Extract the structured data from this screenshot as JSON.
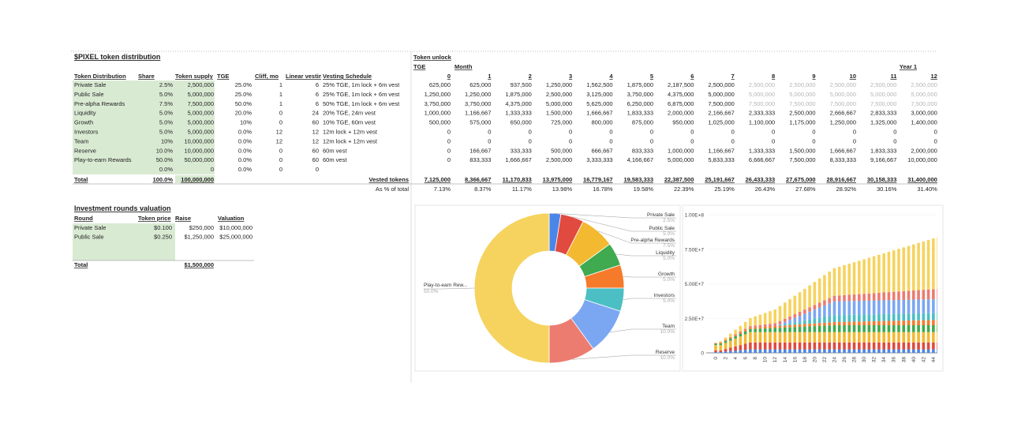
{
  "distribution": {
    "title": "$PIXEL token distribution",
    "headers": [
      "Token Distribution",
      "Share",
      "Token supply",
      "TGE",
      "Cliff, mo",
      "Linear vesting",
      "Vesting Schedule"
    ],
    "rows": [
      [
        "Private Sale",
        "2.5%",
        "2,500,000",
        "25.0%",
        "1",
        "6",
        "25% TGE, 1m lock + 6m vest"
      ],
      [
        "Public Sale",
        "5.0%",
        "5,000,000",
        "25.0%",
        "1",
        "6",
        "25% TGE, 1m lock + 6m vest"
      ],
      [
        "Pre-alpha Rewards",
        "7.5%",
        "7,500,000",
        "50.0%",
        "1",
        "6",
        "50% TGE, 1m lock + 6m vest"
      ],
      [
        "Liquidity",
        "5.0%",
        "5,000,000",
        "20.0%",
        "0",
        "24",
        "20% TGE, 24m vest"
      ],
      [
        "Growth",
        "5.0%",
        "5,000,000",
        "10%",
        "0",
        "60",
        "10% TGE, 60m vest"
      ],
      [
        "Investors",
        "5.0%",
        "5,000,000",
        "0.0%",
        "12",
        "12",
        "12m lock + 12m vest"
      ],
      [
        "Team",
        "10%",
        "10,000,000",
        "0.0%",
        "12",
        "12",
        "12m lock + 12m vest"
      ],
      [
        "Reserve",
        "10.0%",
        "10,000,000",
        "0.0%",
        "0",
        "60",
        "60m vest"
      ],
      [
        "Play-to-earn Rewards",
        "50.0%",
        "50,000,000",
        "0.0%",
        "0",
        "60",
        "60m vest"
      ],
      [
        null,
        "0.0%",
        "0",
        "0.0%",
        "0",
        "0",
        null
      ]
    ],
    "total": [
      "Total",
      "100.0%",
      "100,000,000"
    ]
  },
  "unlock": {
    "title": "Token unlock",
    "tge": "TGE",
    "month": "Month",
    "year": "Year 1",
    "months": [
      "0",
      "1",
      "2",
      "3",
      "4",
      "5",
      "6",
      "7",
      "8",
      "9",
      "10",
      "11",
      "12"
    ],
    "rows": [
      [
        "625,000",
        "625,000",
        "937,500",
        "1,250,000",
        "1,562,500",
        "1,875,000",
        "2,187,500",
        "2,500,000",
        "2,500,000",
        "2,500,000",
        "2,500,000",
        "2,500,000",
        "2,500,000"
      ],
      [
        "1,250,000",
        "1,250,000",
        "1,875,000",
        "2,500,000",
        "3,125,000",
        "3,750,000",
        "4,375,000",
        "5,000,000",
        "5,000,000",
        "5,000,000",
        "5,000,000",
        "5,000,000",
        "5,000,000"
      ],
      [
        "3,750,000",
        "3,750,000",
        "4,375,000",
        "5,000,000",
        "5,625,000",
        "6,250,000",
        "6,875,000",
        "7,500,000",
        "7,500,000",
        "7,500,000",
        "7,500,000",
        "7,500,000",
        "7,500,000"
      ],
      [
        "1,000,000",
        "1,166,667",
        "1,333,333",
        "1,500,000",
        "1,666,667",
        "1,833,333",
        "2,000,000",
        "2,166,667",
        "2,333,333",
        "2,500,000",
        "2,666,667",
        "2,833,333",
        "3,000,000"
      ],
      [
        "500,000",
        "575,000",
        "650,000",
        "725,000",
        "800,000",
        "875,000",
        "950,000",
        "1,025,000",
        "1,100,000",
        "1,175,000",
        "1,250,000",
        "1,325,000",
        "1,400,000"
      ],
      [
        "0",
        "0",
        "0",
        "0",
        "0",
        "0",
        "0",
        "0",
        "0",
        "0",
        "0",
        "0",
        "0"
      ],
      [
        "0",
        "0",
        "0",
        "0",
        "0",
        "0",
        "0",
        "0",
        "0",
        "0",
        "0",
        "0",
        "0"
      ],
      [
        "0",
        "166,667",
        "333,333",
        "500,000",
        "666,667",
        "833,333",
        "1,000,000",
        "1,166,667",
        "1,333,333",
        "1,500,000",
        "1,666,667",
        "1,833,333",
        "2,000,000"
      ],
      [
        "0",
        "833,333",
        "1,666,667",
        "2,500,000",
        "3,333,333",
        "4,166,667",
        "5,000,000",
        "5,833,333",
        "6,666,667",
        "7,500,000",
        "8,333,333",
        "9,166,667",
        "10,000,000"
      ]
    ],
    "vested_label": "Vested tokens",
    "vested": [
      "7,125,000",
      "8,366,667",
      "11,170,833",
      "13,975,000",
      "16,779,167",
      "19,583,333",
      "22,387,500",
      "25,191,667",
      "26,433,333",
      "27,675,000",
      "28,916,667",
      "30,158,333",
      "31,400,000"
    ],
    "pct_label": "As % of total",
    "pct": [
      "7.13%",
      "8.37%",
      "11.17%",
      "13.98%",
      "16.78%",
      "19.58%",
      "22.39%",
      "25.19%",
      "26.43%",
      "27.68%",
      "28.92%",
      "30.16%",
      "31.40%"
    ]
  },
  "investment": {
    "title": "Investment rounds valuation",
    "headers": [
      "Round",
      "Token price",
      "Raise",
      "Valuation"
    ],
    "rows": [
      [
        "Private Sale",
        "$0.100",
        "$250,000",
        "$10,000,000"
      ],
      [
        "Public Sale",
        "$0.250",
        "$1,250,000",
        "$25,000,000"
      ]
    ],
    "total": [
      "Total",
      "$1,500,000"
    ]
  },
  "pie_chart": {
    "type": "pie",
    "categories": [
      "Private Sale",
      "Public Sale",
      "Pre-alpha Rewards",
      "Liquidity",
      "Growth",
      "Investors",
      "Team",
      "Reserve",
      "Play-to-earn Rew..."
    ],
    "values": [
      2.5,
      5,
      7.5,
      5,
      5,
      5,
      10,
      10,
      50
    ],
    "value_labels": [
      "2.5%",
      "5.0%",
      "7.5%",
      "5.0%",
      "5.0%",
      "5.0%",
      "10.0%",
      "10.0%",
      "50.0%"
    ],
    "colors": [
      "#4a86e8",
      "#e04a3f",
      "#f3b931",
      "#3faa4f",
      "#f57a2a",
      "#4bbfc4",
      "#7ba7f2",
      "#ec7b70",
      "#f6d35e"
    ]
  },
  "bar_chart": {
    "type": "stacked_bar",
    "categories": [
      0,
      null,
      2,
      null,
      4,
      null,
      6,
      null,
      8,
      null,
      10,
      null,
      12,
      null,
      14,
      null,
      16,
      null,
      18,
      null,
      20,
      null,
      22,
      null,
      24,
      null,
      26,
      null,
      28,
      null,
      30,
      null,
      32,
      null,
      34,
      null,
      36,
      null,
      38,
      null,
      40,
      null,
      42,
      null,
      44,
      null
    ],
    "ylim": [
      0,
      100000000
    ],
    "yticks": [
      0,
      {
        "value": 25000000,
        "label": "2.50E+7"
      },
      {
        "value": 50000000,
        "label": "5.00E+7"
      },
      {
        "value": 75000000,
        "label": "7.50E+7"
      },
      {
        "value": 100000000,
        "label": "1.00E+8"
      }
    ],
    "series": [
      {
        "color": "#4a86e8",
        "values": [
          625000,
          625000,
          937500,
          1250000,
          1562500,
          1875000,
          2187500,
          2500000,
          2500000,
          2500000,
          2500000,
          2500000,
          2500000,
          2500000,
          2500000,
          2500000,
          2500000,
          2500000,
          2500000,
          2500000,
          2500000,
          2500000,
          2500000,
          2500000,
          2500000,
          2500000,
          2500000,
          2500000,
          2500000,
          2500000,
          2500000,
          2500000,
          2500000,
          2500000,
          2500000,
          2500000,
          2500000,
          2500000,
          2500000,
          2500000,
          2500000,
          2500000,
          2500000,
          2500000,
          2500000,
          2500000
        ]
      },
      {
        "color": "#e04a3f",
        "values": [
          1250000,
          1250000,
          1875000,
          2500000,
          3125000,
          3750000,
          4375000,
          5000000,
          5000000,
          5000000,
          5000000,
          5000000,
          5000000,
          5000000,
          5000000,
          5000000,
          5000000,
          5000000,
          5000000,
          5000000,
          5000000,
          5000000,
          5000000,
          5000000,
          5000000,
          5000000,
          5000000,
          5000000,
          5000000,
          5000000,
          5000000,
          5000000,
          5000000,
          5000000,
          5000000,
          5000000,
          5000000,
          5000000,
          5000000,
          5000000,
          5000000,
          5000000,
          5000000,
          5000000,
          5000000,
          5000000
        ]
      },
      {
        "color": "#f3b931",
        "values": [
          3750000,
          3750000,
          4375000,
          5000000,
          5625000,
          6250000,
          6875000,
          7500000,
          7500000,
          7500000,
          7500000,
          7500000,
          7500000,
          7500000,
          7500000,
          7500000,
          7500000,
          7500000,
          7500000,
          7500000,
          7500000,
          7500000,
          7500000,
          7500000,
          7500000,
          7500000,
          7500000,
          7500000,
          7500000,
          7500000,
          7500000,
          7500000,
          7500000,
          7500000,
          7500000,
          7500000,
          7500000,
          7500000,
          7500000,
          7500000,
          7500000,
          7500000,
          7500000,
          7500000,
          7500000,
          7500000
        ]
      },
      {
        "color": "#3faa4f",
        "values": [
          1000000,
          1166667,
          1333333,
          1500000,
          1666667,
          1833333,
          2000000,
          2166667,
          2333333,
          2500000,
          2666667,
          2833333,
          3000000,
          3166667,
          3333333,
          3500000,
          3666667,
          3833333,
          4000000,
          4166667,
          4333333,
          4500000,
          4666667,
          4833333,
          5000000,
          5000000,
          5000000,
          5000000,
          5000000,
          5000000,
          5000000,
          5000000,
          5000000,
          5000000,
          5000000,
          5000000,
          5000000,
          5000000,
          5000000,
          5000000,
          5000000,
          5000000,
          5000000,
          5000000,
          5000000,
          5000000
        ]
      },
      {
        "color": "#f57a2a",
        "values": [
          500000,
          575000,
          650000,
          725000,
          800000,
          875000,
          950000,
          1025000,
          1100000,
          1175000,
          1250000,
          1325000,
          1400000,
          1475000,
          1550000,
          1625000,
          1700000,
          1775000,
          1850000,
          1925000,
          2000000,
          2075000,
          2150000,
          2225000,
          2300000,
          2375000,
          2450000,
          2525000,
          2600000,
          2675000,
          2750000,
          2825000,
          2900000,
          2975000,
          3050000,
          3125000,
          3200000,
          3275000,
          3350000,
          3425000,
          3500000,
          3575000,
          3650000,
          3725000,
          3800000,
          3875000
        ]
      },
      {
        "color": "#4bbfc4",
        "values": [
          0,
          0,
          0,
          0,
          0,
          0,
          0,
          0,
          0,
          0,
          0,
          0,
          0,
          416667,
          833333,
          1250000,
          1666667,
          2083333,
          2500000,
          2916667,
          3333333,
          3750000,
          4166667,
          4583333,
          5000000,
          5000000,
          5000000,
          5000000,
          5000000,
          5000000,
          5000000,
          5000000,
          5000000,
          5000000,
          5000000,
          5000000,
          5000000,
          5000000,
          5000000,
          5000000,
          5000000,
          5000000,
          5000000,
          5000000,
          5000000,
          5000000
        ]
      },
      {
        "color": "#7ba7f2",
        "values": [
          0,
          0,
          0,
          0,
          0,
          0,
          0,
          0,
          0,
          0,
          0,
          0,
          0,
          833333,
          1666667,
          2500000,
          3333333,
          4166667,
          5000000,
          5833333,
          6666667,
          7500000,
          8333333,
          9166667,
          10000000,
          10000000,
          10000000,
          10000000,
          10000000,
          10000000,
          10000000,
          10000000,
          10000000,
          10000000,
          10000000,
          10000000,
          10000000,
          10000000,
          10000000,
          10000000,
          10000000,
          10000000,
          10000000,
          10000000,
          10000000,
          10000000
        ]
      },
      {
        "color": "#ec7b70",
        "values": [
          0,
          166667,
          333333,
          500000,
          666667,
          833333,
          1000000,
          1166667,
          1333333,
          1500000,
          1666667,
          1833333,
          2000000,
          2166667,
          2333333,
          2500000,
          2666667,
          2833333,
          3000000,
          3166667,
          3333333,
          3500000,
          3666667,
          3833333,
          4000000,
          4166667,
          4333333,
          4500000,
          4666667,
          4833333,
          5000000,
          5166667,
          5333333,
          5500000,
          5666667,
          5833333,
          6000000,
          6166667,
          6333333,
          6500000,
          6666667,
          6833333,
          7000000,
          7166667,
          7333333,
          7500000
        ]
      },
      {
        "color": "#f6d35e",
        "values": [
          0,
          833333,
          1666667,
          2500000,
          3333333,
          4166667,
          5000000,
          5833333,
          6666667,
          7500000,
          8333333,
          9166667,
          10000000,
          10833333,
          11666667,
          12500000,
          13333333,
          14166667,
          15000000,
          15833333,
          16666667,
          17500000,
          18333333,
          19166667,
          20000000,
          20833333,
          21666667,
          22500000,
          23333333,
          24166667,
          25000000,
          25833333,
          26666667,
          27500000,
          28333333,
          29166667,
          30000000,
          30833333,
          31666667,
          32500000,
          33333333,
          34166667,
          35000000,
          35833333,
          36666667,
          37500000
        ]
      }
    ]
  }
}
